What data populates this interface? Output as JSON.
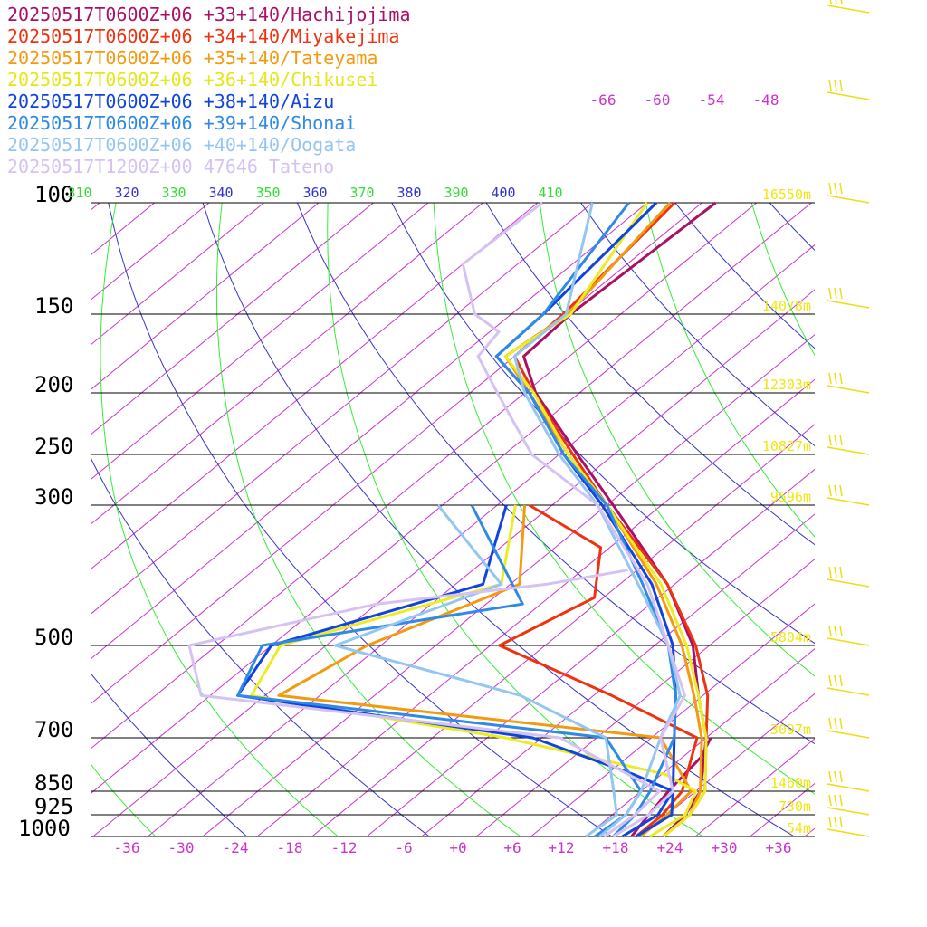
{
  "chart_data": {
    "type": "line",
    "diagram": "skew-T log-p",
    "legend": [
      {
        "label": "20250517T0600Z+06 +33+140/Hachijojima",
        "color": "#aa1166"
      },
      {
        "label": "20250517T0600Z+06 +34+140/Miyakejima",
        "color": "#ee3311"
      },
      {
        "label": "20250517T0600Z+06 +35+140/Tateyama",
        "color": "#f39a10"
      },
      {
        "label": "20250517T0600Z+06 +36+140/Chikusei",
        "color": "#ecec22"
      },
      {
        "label": "20250517T0600Z+06 +38+140/Aizu",
        "color": "#1144dd"
      },
      {
        "label": "20250517T0600Z+06 +39+140/Shonai",
        "color": "#2f8ae6"
      },
      {
        "label": "20250517T0600Z+06 +40+140/Oogata",
        "color": "#94c6f2"
      },
      {
        "label": "20250517T1200Z+00 47646_Tateno",
        "color": "#d6c2f2"
      }
    ],
    "pressure_levels": [
      {
        "p": 100,
        "label": "100",
        "height": "16550m"
      },
      {
        "p": 150,
        "label": "150",
        "height": "14078m"
      },
      {
        "p": 200,
        "label": "200",
        "height": "12303m"
      },
      {
        "p": 250,
        "label": "250",
        "height": "10827m"
      },
      {
        "p": 300,
        "label": "300",
        "height": "9596m"
      },
      {
        "p": 500,
        "label": "500",
        "height": "5804m"
      },
      {
        "p": 700,
        "label": "700",
        "height": "3097m"
      },
      {
        "p": 850,
        "label": "850",
        "height": "1460m"
      },
      {
        "p": 925,
        "label": "925",
        "height": "730m"
      },
      {
        "p": 1000,
        "label": "1000",
        "height": "54m"
      }
    ],
    "temperature_ticks": [
      "-36",
      "-30",
      "-24",
      "-18",
      "-12",
      "-6",
      "+0",
      "+6",
      "+12",
      "+18",
      "+24",
      "+30",
      "+36"
    ],
    "upper_temperature_labels": [
      "-66",
      "-60",
      "-54",
      "-48"
    ],
    "theta_labels": [
      {
        "label": "310",
        "color": "#33dd33"
      },
      {
        "label": "320",
        "color": "#3333cc"
      },
      {
        "label": "330",
        "color": "#33dd33"
      },
      {
        "label": "340",
        "color": "#3333cc"
      },
      {
        "label": "350",
        "color": "#33dd33"
      },
      {
        "label": "360",
        "color": "#3333cc"
      },
      {
        "label": "370",
        "color": "#33dd33"
      },
      {
        "label": "380",
        "color": "#3333cc"
      },
      {
        "label": "390",
        "color": "#33dd33"
      },
      {
        "label": "400",
        "color": "#3333cc"
      },
      {
        "label": "410",
        "color": "#33dd33"
      }
    ],
    "series": [
      {
        "name": "20250517T0600Z+06 +33+140/Hachijojima",
        "color": "#aa1166",
        "temperature": [
          [
            1000,
            22.5
          ],
          [
            925,
            22
          ],
          [
            850,
            20.5
          ],
          [
            700,
            14
          ],
          [
            600,
            7.5
          ],
          [
            500,
            0.2
          ],
          [
            400,
            -10.8
          ],
          [
            300,
            -27.3
          ],
          [
            250,
            -38
          ],
          [
            200,
            -50.8
          ],
          [
            175,
            -57
          ],
          [
            150,
            -57.5
          ],
          [
            100,
            -56.5
          ]
        ],
        "dewpoint": [
          [
            1000,
            19
          ],
          [
            925,
            18
          ],
          [
            850,
            17
          ],
          [
            750,
            16
          ],
          [
            700,
            14.5
          ]
        ]
      },
      {
        "name": "20250517T0600Z+06 +34+140/Miyakejima",
        "color": "#ee3311",
        "temperature": [
          [
            1000,
            22.5
          ],
          [
            925,
            22.5
          ],
          [
            850,
            21
          ],
          [
            700,
            14
          ],
          [
            600,
            8.5
          ],
          [
            500,
            0.5
          ],
          [
            400,
            -10.8
          ],
          [
            300,
            -28
          ],
          [
            250,
            -38.5
          ],
          [
            200,
            -51
          ],
          [
            175,
            -58
          ],
          [
            150,
            -58.3
          ],
          [
            100,
            -61
          ]
        ],
        "dewpoint": [
          [
            1000,
            19.5
          ],
          [
            925,
            19.5
          ],
          [
            850,
            18.5
          ],
          [
            700,
            13
          ],
          [
            600,
            -2
          ],
          [
            500,
            -21
          ],
          [
            420,
            -17
          ],
          [
            350,
            -23
          ],
          [
            300,
            -36.5
          ]
        ]
      },
      {
        "name": "20250517T0600Z+06 +35+140/Tateyama",
        "color": "#f39a10",
        "temperature": [
          [
            1000,
            22.5
          ],
          [
            925,
            22.5
          ],
          [
            850,
            20.5
          ],
          [
            700,
            13.5
          ],
          [
            600,
            7
          ],
          [
            500,
            -1
          ],
          [
            400,
            -12
          ],
          [
            300,
            -28
          ],
          [
            250,
            -39
          ],
          [
            200,
            -51.5
          ],
          [
            175,
            -59
          ],
          [
            150,
            -57.8
          ],
          [
            100,
            -61.5
          ]
        ],
        "dewpoint": [
          [
            1000,
            20
          ],
          [
            925,
            20
          ],
          [
            850,
            19.5
          ],
          [
            700,
            9
          ],
          [
            600,
            -38.5
          ],
          [
            500,
            -35.5
          ],
          [
            400,
            -27
          ],
          [
            300,
            -37
          ]
        ]
      },
      {
        "name": "20250517T0600Z+06 +36+140/Chikusei",
        "color": "#ecec22",
        "temperature": [
          [
            1000,
            22.5
          ],
          [
            925,
            22.5
          ],
          [
            850,
            21
          ],
          [
            700,
            14
          ],
          [
            600,
            7.5
          ],
          [
            500,
            -0.5
          ],
          [
            400,
            -11.5
          ],
          [
            300,
            -28
          ],
          [
            250,
            -39
          ],
          [
            200,
            -51
          ],
          [
            175,
            -59
          ],
          [
            150,
            -57.5
          ],
          [
            100,
            -64
          ]
        ],
        "dewpoint": [
          [
            1000,
            21
          ],
          [
            925,
            22
          ],
          [
            850,
            20
          ],
          [
            800,
            14.5
          ],
          [
            700,
            -8
          ],
          [
            600,
            -41.5
          ],
          [
            500,
            -45
          ],
          [
            400,
            -29
          ],
          [
            300,
            -38
          ]
        ]
      },
      {
        "name": "20250517T0600Z+06 +38+140/Aizu",
        "color": "#1144dd",
        "temperature": [
          [
            1000,
            19.5
          ],
          [
            925,
            20.5
          ],
          [
            850,
            17.5
          ],
          [
            700,
            10.5
          ],
          [
            600,
            5
          ],
          [
            500,
            -2
          ],
          [
            400,
            -12.5
          ],
          [
            300,
            -28.5
          ],
          [
            250,
            -39.5
          ],
          [
            200,
            -51.5
          ],
          [
            175,
            -60
          ],
          [
            150,
            -60.5
          ],
          [
            100,
            -63
          ]
        ],
        "dewpoint": [
          [
            1000,
            18
          ],
          [
            925,
            19
          ],
          [
            850,
            17.5
          ],
          [
            800,
            11
          ],
          [
            700,
            -5
          ],
          [
            600,
            -43
          ],
          [
            500,
            -46
          ],
          [
            400,
            -31
          ],
          [
            300,
            -39
          ]
        ]
      },
      {
        "name": "20250517T0600Z+06 +39+140/Shonai",
        "color": "#2f8ae6",
        "temperature": [
          [
            1000,
            17
          ],
          [
            925,
            16.5
          ],
          [
            850,
            15
          ],
          [
            700,
            10.5
          ],
          [
            600,
            5
          ],
          [
            500,
            -2.5
          ],
          [
            400,
            -13.5
          ],
          [
            300,
            -28
          ],
          [
            250,
            -39.5
          ],
          [
            200,
            -51.5
          ],
          [
            175,
            -60
          ],
          [
            150,
            -60.5
          ],
          [
            100,
            -66
          ]
        ],
        "dewpoint": [
          [
            1000,
            15
          ],
          [
            925,
            15.5
          ],
          [
            850,
            14
          ],
          [
            700,
            3
          ],
          [
            600,
            -43
          ],
          [
            500,
            -47
          ],
          [
            430,
            -24
          ],
          [
            300,
            -42.8
          ]
        ]
      },
      {
        "name": "20250517T0600Z+06 +40+140/Oogata",
        "color": "#94c6f2",
        "temperature": [
          [
            1000,
            15.5
          ],
          [
            925,
            15.5
          ],
          [
            850,
            14
          ],
          [
            700,
            9
          ],
          [
            600,
            5.5
          ],
          [
            500,
            -2.5
          ],
          [
            400,
            -14
          ],
          [
            300,
            -29
          ],
          [
            250,
            -40
          ],
          [
            200,
            -52
          ],
          [
            175,
            -58
          ],
          [
            150,
            -58
          ],
          [
            100,
            -70
          ]
        ],
        "dewpoint": [
          [
            1000,
            14
          ],
          [
            925,
            14.5
          ],
          [
            850,
            11
          ],
          [
            700,
            3
          ],
          [
            600,
            -12
          ],
          [
            500,
            -39
          ],
          [
            400,
            -29
          ],
          [
            300,
            -46.5
          ]
        ]
      },
      {
        "name": "20250517T1200Z+00 47646_Tateno",
        "color": "#d6c2f2",
        "temperature": [
          [
            1000,
            17
          ],
          [
            925,
            18
          ],
          [
            850,
            17.5
          ],
          [
            700,
            9
          ],
          [
            600,
            6
          ],
          [
            500,
            -2.5
          ],
          [
            400,
            -13
          ],
          [
            300,
            -29
          ],
          [
            250,
            -43
          ],
          [
            200,
            -55
          ],
          [
            175,
            -62
          ],
          [
            160,
            -63
          ],
          [
            150,
            -68
          ],
          [
            125,
            -76
          ],
          [
            100,
            -75.5
          ]
        ],
        "dewpoint": [
          [
            1000,
            16
          ],
          [
            925,
            16.5
          ],
          [
            850,
            16
          ],
          [
            700,
            -2
          ],
          [
            600,
            -47
          ],
          [
            500,
            -55
          ],
          [
            430,
            -40
          ],
          [
            400,
            -24
          ],
          [
            380,
            -17
          ]
        ]
      }
    ]
  }
}
